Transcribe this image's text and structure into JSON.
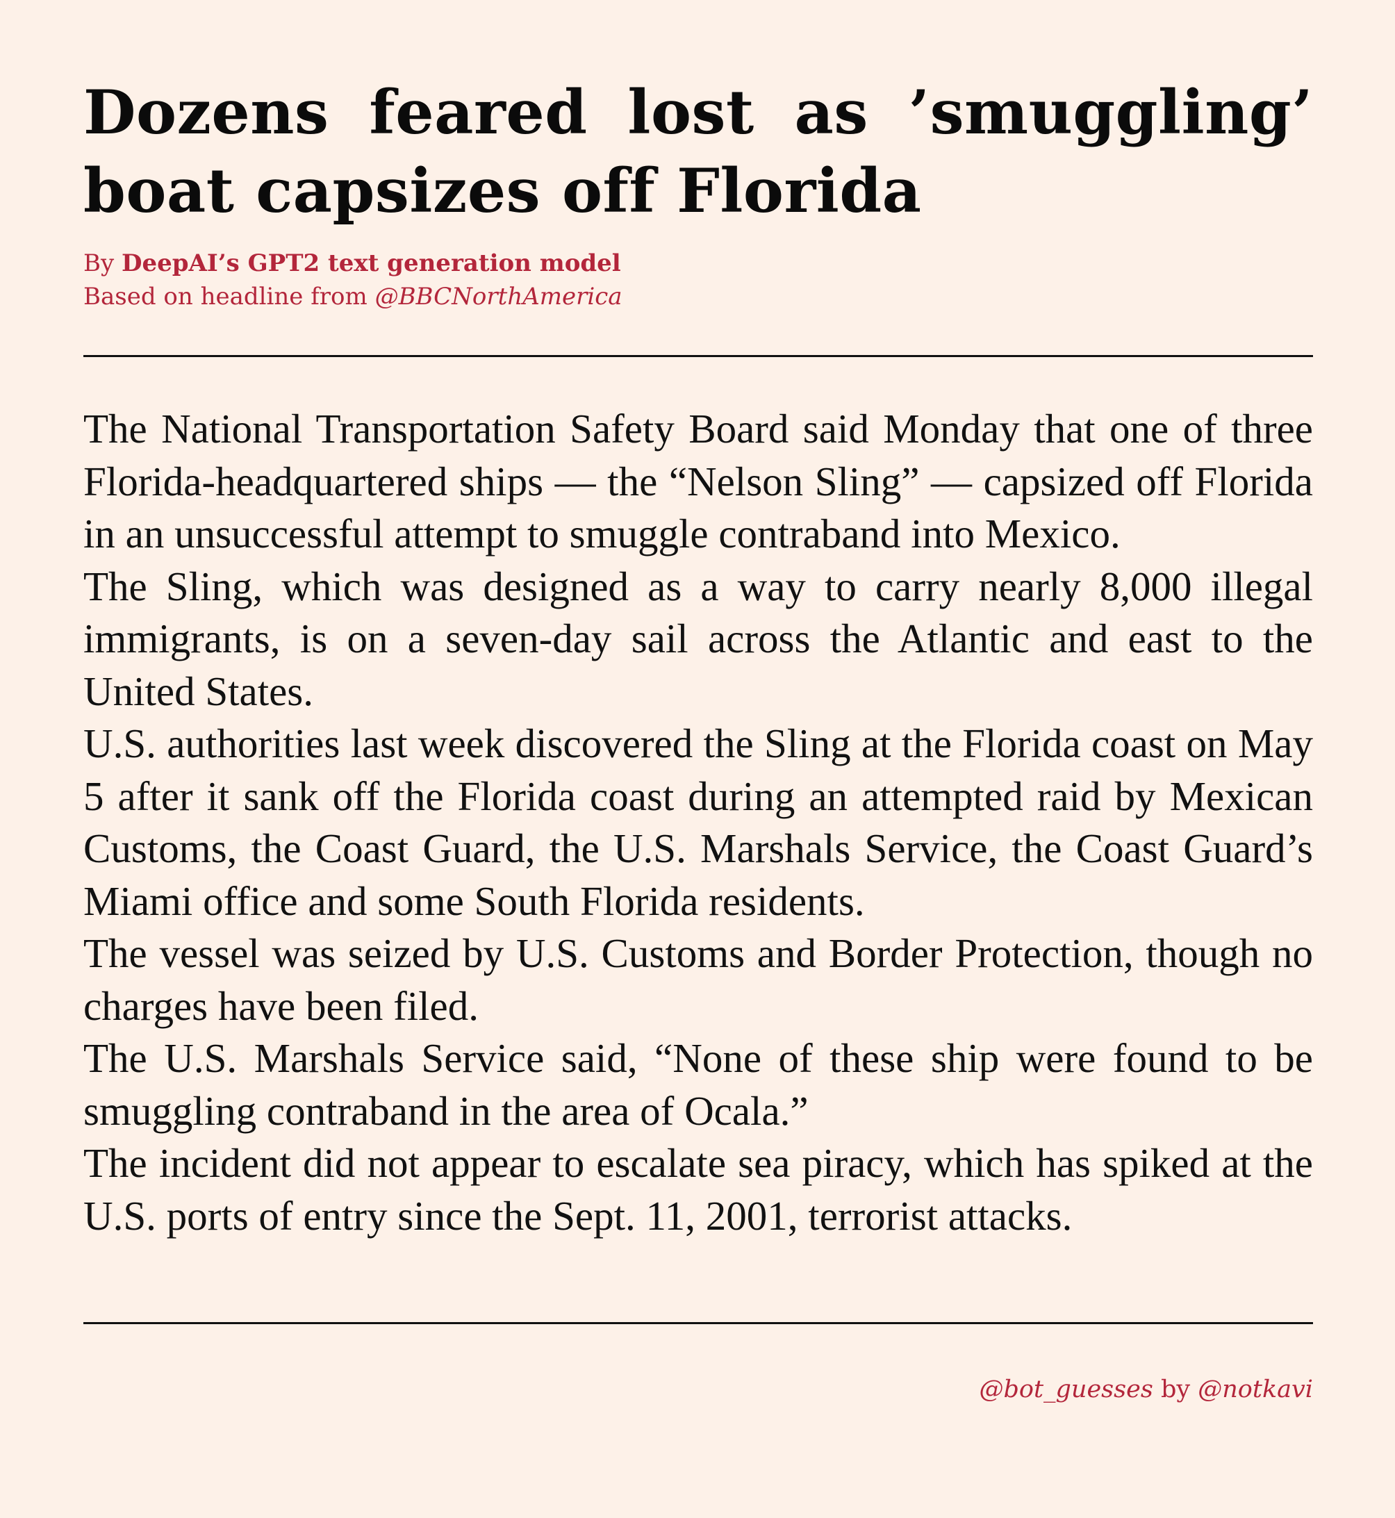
{
  "headline": "Dozens feared lost as ’smuggling’ boat capsizes off Florida",
  "byline": {
    "prefix": "By",
    "author": "DeepAI’s GPT2 text generation model",
    "based_on": "Based on headline from",
    "source_handle": "@BBCNorthAmerica"
  },
  "article": {
    "paragraphs": [
      "The National Transportation Safety Board said Monday that one of three Florida-headquartered ships — the “Nelson Sling” — capsized off Florida in an unsuccessful attempt to smuggle contraband into Mexico.",
      "The Sling, which was designed as a way to carry nearly 8,000 illegal immigrants, is on a seven-day sail across the Atlantic and east to the United States.",
      "U.S. authorities last week discovered the Sling at the Florida coast on May 5 after it sank off the Florida coast during an attempted raid by Mexican Customs, the Coast Guard, the U.S. Marshals Service, the Coast Guard’s Miami office and some South Florida residents.",
      "The vessel was seized by U.S. Customs and Border Protection, though no charges have been filed.",
      "The U.S. Marshals Service said, “None of these ship were found to be smuggling contraband in the area of Ocala.”",
      "The incident did not appear to escalate sea piracy, which has spiked at the U.S. ports of entry since the Sept. 11, 2001, terrorist attacks."
    ]
  },
  "credit": {
    "bot_handle": "@bot_guesses",
    "by": "by",
    "author_handle": "@notkavi"
  }
}
